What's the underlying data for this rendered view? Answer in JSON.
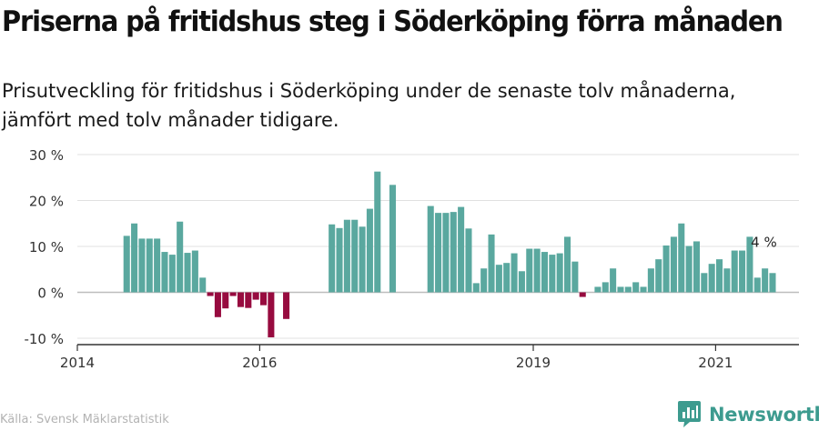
{
  "title": "Priserna på fritidshus steg i Söderköping förra månaden",
  "subtitle_line1": "Prisutveckling för fritidshus i Söderköping under de senaste tolv månaderna,",
  "subtitle_line2": "jämfört med tolv månader tidigare.",
  "source": "Källa: Svensk Mäklarstatistik",
  "brand": "Newsworthy",
  "colors": {
    "positive": "#5aa89f",
    "negative": "#970b3f",
    "brand": "#3d9b8f"
  },
  "chart_data": {
    "type": "bar",
    "title": "Priserna på fritidshus steg i Söderköping förra månaden",
    "ylim": [
      -10,
      30
    ],
    "yticks": [
      -10,
      0,
      10,
      20,
      30
    ],
    "ytick_labels": [
      "-10 %",
      "0 %",
      "10 %",
      "20 %",
      "30 %"
    ],
    "xticks": [
      {
        "label": "2014",
        "date": "2014-01"
      },
      {
        "label": "2016",
        "date": "2016-01"
      },
      {
        "label": "2019",
        "date": "2019-01"
      },
      {
        "label": "2021",
        "date": "2021-01"
      }
    ],
    "grid": true,
    "annotation": {
      "text": "4 %",
      "date": "2021-06",
      "value": 4
    },
    "series": [
      {
        "values": [
          {
            "date": "2014-07",
            "value": 12.3
          },
          {
            "date": "2014-08",
            "value": 15.0
          },
          {
            "date": "2014-09",
            "value": 11.7
          },
          {
            "date": "2014-10",
            "value": 11.7
          },
          {
            "date": "2014-11",
            "value": 11.7
          },
          {
            "date": "2014-12",
            "value": 8.8
          },
          {
            "date": "2015-01",
            "value": 8.2
          },
          {
            "date": "2015-02",
            "value": 15.4
          },
          {
            "date": "2015-03",
            "value": 8.6
          },
          {
            "date": "2015-04",
            "value": 9.1
          },
          {
            "date": "2015-05",
            "value": 3.2
          },
          {
            "date": "2015-06",
            "value": -0.8
          },
          {
            "date": "2015-07",
            "value": -5.4
          },
          {
            "date": "2015-08",
            "value": -3.5
          },
          {
            "date": "2015-09",
            "value": -0.8
          },
          {
            "date": "2015-10",
            "value": -3.2
          },
          {
            "date": "2015-11",
            "value": -3.4
          },
          {
            "date": "2015-12",
            "value": -1.6
          },
          {
            "date": "2016-01",
            "value": -2.8
          },
          {
            "date": "2016-02",
            "value": -9.8
          },
          {
            "date": "2016-03",
            "value": null
          },
          {
            "date": "2016-04",
            "value": -5.8
          },
          {
            "date": "2016-05",
            "value": null
          },
          {
            "date": "2016-06",
            "value": null
          },
          {
            "date": "2016-07",
            "value": null
          },
          {
            "date": "2016-08",
            "value": null
          },
          {
            "date": "2016-09",
            "value": null
          },
          {
            "date": "2016-10",
            "value": 14.8
          },
          {
            "date": "2016-11",
            "value": 14.0
          },
          {
            "date": "2016-12",
            "value": 15.8
          },
          {
            "date": "2017-01",
            "value": 15.8
          },
          {
            "date": "2017-02",
            "value": 14.3
          },
          {
            "date": "2017-03",
            "value": 18.2
          },
          {
            "date": "2017-04",
            "value": 26.3
          },
          {
            "date": "2017-05",
            "value": null
          },
          {
            "date": "2017-06",
            "value": 23.4
          },
          {
            "date": "2017-07",
            "value": null
          },
          {
            "date": "2017-08",
            "value": null
          },
          {
            "date": "2017-09",
            "value": null
          },
          {
            "date": "2017-10",
            "value": null
          },
          {
            "date": "2017-11",
            "value": 18.8
          },
          {
            "date": "2017-12",
            "value": 17.3
          },
          {
            "date": "2018-01",
            "value": 17.3
          },
          {
            "date": "2018-02",
            "value": 17.5
          },
          {
            "date": "2018-03",
            "value": 18.6
          },
          {
            "date": "2018-04",
            "value": 13.9
          },
          {
            "date": "2018-05",
            "value": 2.0
          },
          {
            "date": "2018-06",
            "value": 5.2
          },
          {
            "date": "2018-07",
            "value": 12.6
          },
          {
            "date": "2018-08",
            "value": 6.0
          },
          {
            "date": "2018-09",
            "value": 6.4
          },
          {
            "date": "2018-10",
            "value": 8.5
          },
          {
            "date": "2018-11",
            "value": 4.6
          },
          {
            "date": "2018-12",
            "value": 9.5
          },
          {
            "date": "2019-01",
            "value": 9.5
          },
          {
            "date": "2019-02",
            "value": 8.8
          },
          {
            "date": "2019-03",
            "value": 8.2
          },
          {
            "date": "2019-04",
            "value": 8.5
          },
          {
            "date": "2019-05",
            "value": 12.1
          },
          {
            "date": "2019-06",
            "value": 6.7
          },
          {
            "date": "2019-07",
            "value": -1.0
          },
          {
            "date": "2019-08",
            "value": null
          },
          {
            "date": "2019-09",
            "value": 1.2
          },
          {
            "date": "2019-10",
            "value": 2.2
          },
          {
            "date": "2019-11",
            "value": 5.2
          },
          {
            "date": "2019-12",
            "value": 1.2
          },
          {
            "date": "2020-01",
            "value": 1.2
          },
          {
            "date": "2020-02",
            "value": 2.2
          },
          {
            "date": "2020-03",
            "value": 1.2
          },
          {
            "date": "2020-04",
            "value": 5.2
          },
          {
            "date": "2020-05",
            "value": 7.2
          },
          {
            "date": "2020-06",
            "value": 10.2
          },
          {
            "date": "2020-07",
            "value": 12.1
          },
          {
            "date": "2020-08",
            "value": 15.0
          },
          {
            "date": "2020-09",
            "value": 10.1
          },
          {
            "date": "2020-10",
            "value": 11.1
          },
          {
            "date": "2020-11",
            "value": 4.2
          },
          {
            "date": "2020-12",
            "value": 6.2
          },
          {
            "date": "2021-01",
            "value": 7.2
          },
          {
            "date": "2021-02",
            "value": 5.2
          },
          {
            "date": "2021-03",
            "value": 9.1
          },
          {
            "date": "2021-04",
            "value": 9.1
          },
          {
            "date": "2021-05",
            "value": 12.1
          },
          {
            "date": "2021-06",
            "value": 3.2
          },
          {
            "date": "2021-07",
            "value": 5.2
          },
          {
            "date": "2021-08",
            "value": 4.2
          }
        ]
      }
    ]
  }
}
